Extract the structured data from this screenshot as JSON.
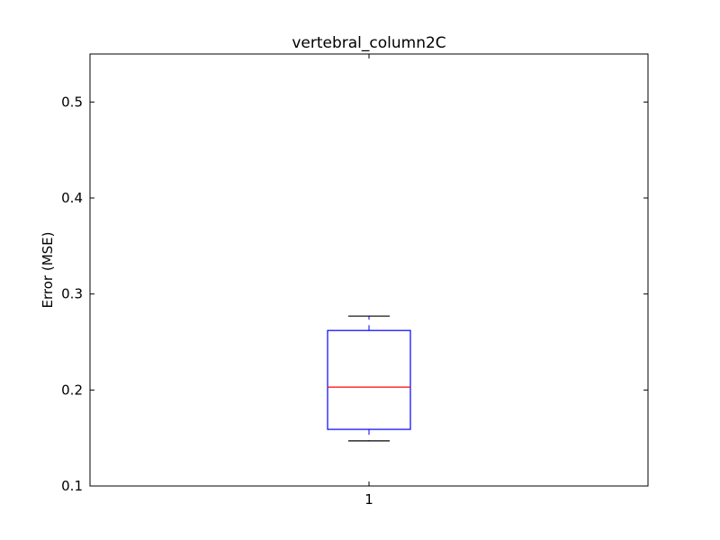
{
  "chart_data": {
    "type": "box",
    "title": "vertebral_column2C",
    "xlabel": "",
    "ylabel": "Error (MSE)",
    "ylim": [
      0.1,
      0.55
    ],
    "yticks": [
      "0.1",
      "0.2",
      "0.3",
      "0.4",
      "0.5"
    ],
    "categories": [
      "1"
    ],
    "boxes": [
      {
        "category": "1",
        "whisker_low": 0.147,
        "q1": 0.159,
        "median": 0.203,
        "q3": 0.262,
        "whisker_high": 0.277
      }
    ],
    "grid": false,
    "colors": {
      "box": "#0000ff",
      "median": "#ff0000",
      "whisker": "#0000ff",
      "cap": "#000000",
      "axes": "#000000"
    }
  }
}
